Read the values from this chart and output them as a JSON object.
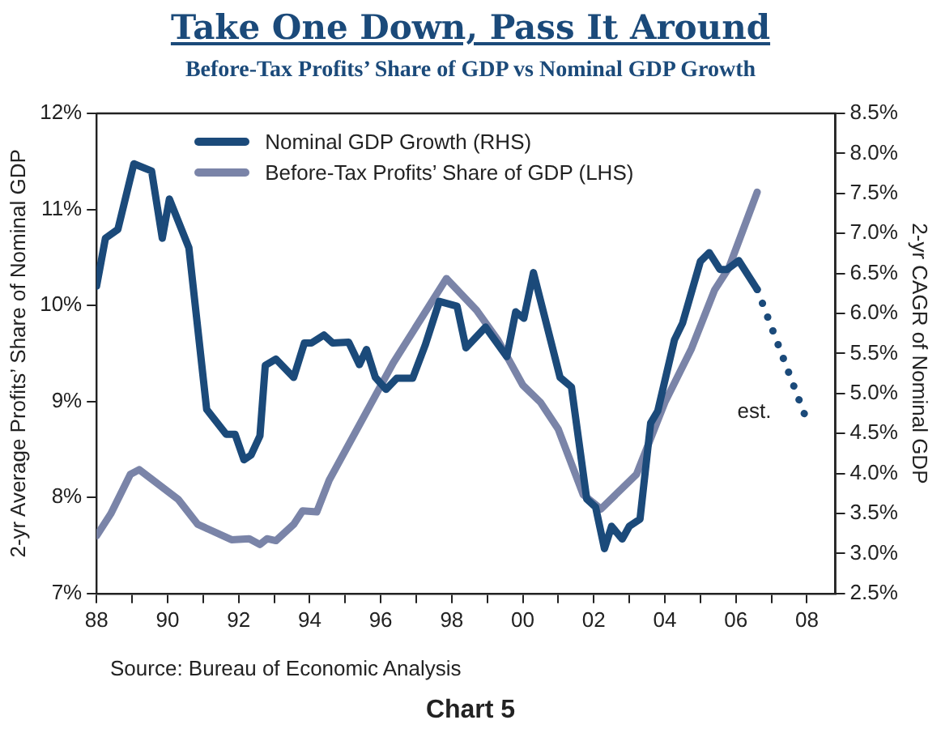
{
  "chart_data": {
    "type": "line",
    "title": "Take One Down, Pass It Around",
    "subtitle": "Before-Tax Profits’ Share of GDP vs Nominal GDP Growth",
    "ylabel": "2-yr Average Profits’ Share of Nominal GDP",
    "y2label": "2-yr CAGR of Nominal GDP",
    "xlim": [
      1988,
      2008.8
    ],
    "xticks": [
      {
        "value": 1988,
        "label": "88"
      },
      {
        "value": 1989,
        "label": null
      },
      {
        "value": 1990,
        "label": "90"
      },
      {
        "value": 1991,
        "label": null
      },
      {
        "value": 1992,
        "label": "92"
      },
      {
        "value": 1993,
        "label": null
      },
      {
        "value": 1994,
        "label": "94"
      },
      {
        "value": 1995,
        "label": null
      },
      {
        "value": 1996,
        "label": "96"
      },
      {
        "value": 1997,
        "label": null
      },
      {
        "value": 1998,
        "label": "98"
      },
      {
        "value": 1999,
        "label": null
      },
      {
        "value": 2000,
        "label": "00"
      },
      {
        "value": 2001,
        "label": null
      },
      {
        "value": 2002,
        "label": "02"
      },
      {
        "value": 2003,
        "label": null
      },
      {
        "value": 2004,
        "label": "04"
      },
      {
        "value": 2005,
        "label": null
      },
      {
        "value": 2006,
        "label": "06"
      },
      {
        "value": 2007,
        "label": null
      },
      {
        "value": 2008,
        "label": "08"
      }
    ],
    "ylim": [
      7,
      12
    ],
    "yticks": [
      {
        "value": 7,
        "label": "7%"
      },
      {
        "value": 8,
        "label": "8%"
      },
      {
        "value": 9,
        "label": "9%"
      },
      {
        "value": 10,
        "label": "10%"
      },
      {
        "value": 11,
        "label": "11%"
      },
      {
        "value": 12,
        "label": "12%"
      }
    ],
    "y2lim": [
      2.5,
      8.5
    ],
    "y2ticks": [
      {
        "value": 2.5,
        "label": "2.5%"
      },
      {
        "value": 3,
        "label": "3.0%"
      },
      {
        "value": 3.5,
        "label": "3.5%"
      },
      {
        "value": 4,
        "label": "4.0%"
      },
      {
        "value": 4.5,
        "label": "4.5%"
      },
      {
        "value": 5,
        "label": "5.0%"
      },
      {
        "value": 5.5,
        "label": "5.5%"
      },
      {
        "value": 6,
        "label": "6.0%"
      },
      {
        "value": 6.5,
        "label": "6.5%"
      },
      {
        "value": 7,
        "label": "7.0%"
      },
      {
        "value": 7.5,
        "label": "7.5%"
      },
      {
        "value": 8,
        "label": "8.0%"
      },
      {
        "value": 8.5,
        "label": "8.5%"
      }
    ],
    "legend": "top left",
    "marker": "none",
    "grid": false,
    "series": [
      {
        "name": "Nominal GDP Growth (RHS)",
        "color": "#1b4a7a",
        "axis": "y2",
        "line_style": "solid",
        "x": [
          1988.0,
          1988.25,
          1988.6,
          1989.05,
          1989.55,
          1989.85,
          1990.05,
          1990.6,
          1991.1,
          1991.65,
          1991.9,
          1992.15,
          1992.35,
          1992.6,
          1992.75,
          1993.05,
          1993.55,
          1993.85,
          1994.05,
          1994.4,
          1994.65,
          1995.1,
          1995.4,
          1995.6,
          1995.85,
          1996.15,
          1996.45,
          1996.9,
          1997.25,
          1997.65,
          1998.15,
          1998.4,
          1998.95,
          1999.55,
          1999.8,
          2000.03,
          2000.3,
          2001.05,
          2001.37,
          2001.8,
          2002.05,
          2002.3,
          2002.5,
          2002.8,
          2003.0,
          2003.3,
          2003.6,
          2003.8,
          2004.27,
          2004.5,
          2005.0,
          2005.25,
          2005.55,
          2005.75,
          2006.08,
          2006.6
        ],
        "values": [
          6.34,
          6.94,
          7.05,
          7.87,
          7.78,
          6.94,
          7.43,
          6.82,
          4.8,
          4.49,
          4.49,
          4.17,
          4.23,
          4.47,
          5.35,
          5.43,
          5.2,
          5.63,
          5.63,
          5.73,
          5.63,
          5.64,
          5.36,
          5.55,
          5.2,
          5.05,
          5.19,
          5.19,
          5.6,
          6.15,
          6.09,
          5.57,
          5.83,
          5.46,
          6.02,
          5.94,
          6.51,
          5.2,
          5.08,
          3.68,
          3.58,
          3.06,
          3.34,
          3.18,
          3.34,
          3.43,
          4.63,
          4.78,
          5.67,
          5.88,
          6.65,
          6.76,
          6.55,
          6.55,
          6.66,
          6.3
        ]
      },
      {
        "color": "#1b4a7a",
        "axis": "y2",
        "line_style": "dotted",
        "x": [
          2006.6,
          2008.0
        ],
        "values": [
          6.3,
          4.66
        ]
      },
      {
        "name": "Before-Tax Profits’ Share of GDP (LHS)",
        "color": "#7a84a8",
        "axis": "y",
        "line_style": "solid",
        "x": [
          1988.0,
          1988.4,
          1988.95,
          1989.2,
          1990.3,
          1990.85,
          1991.8,
          1992.3,
          1992.6,
          1992.8,
          1993.05,
          1993.55,
          1993.8,
          1994.2,
          1994.55,
          1996.1,
          1996.35,
          1997.85,
          1998.7,
          1999.3,
          2000.0,
          2000.5,
          2001.0,
          2001.7,
          2002.2,
          2003.2,
          2004.0,
          2004.75,
          2005.4,
          2005.8,
          2006.6
        ],
        "values": [
          7.6,
          7.83,
          8.24,
          8.29,
          7.98,
          7.72,
          7.56,
          7.57,
          7.51,
          7.57,
          7.55,
          7.72,
          7.86,
          7.85,
          8.18,
          9.23,
          9.4,
          10.28,
          9.95,
          9.64,
          9.17,
          8.99,
          8.71,
          8.03,
          7.88,
          8.24,
          8.99,
          9.55,
          10.16,
          10.39,
          11.18
        ]
      }
    ],
    "annotations": [
      "est.",
      "Source: Bureau of Economic Analysis",
      "Chart 5"
    ]
  }
}
